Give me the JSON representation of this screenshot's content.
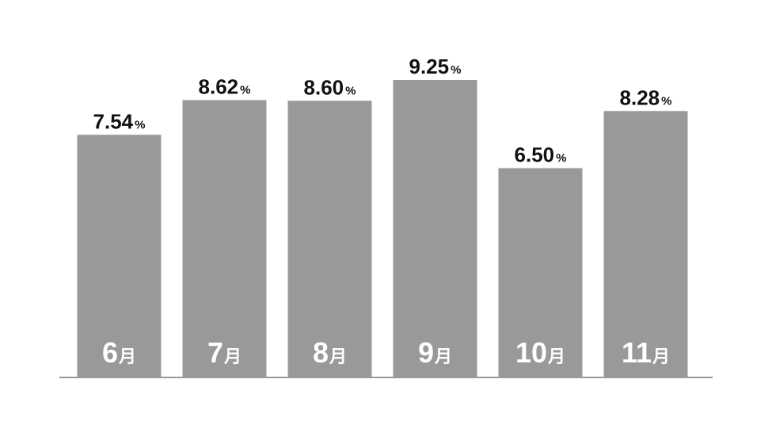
{
  "chart_data": {
    "type": "bar",
    "categories": [
      "6月",
      "7月",
      "8月",
      "9月",
      "10月",
      "11月"
    ],
    "category_numbers": [
      "6",
      "7",
      "8",
      "9",
      "10",
      "11"
    ],
    "category_unit": "月",
    "values": [
      7.54,
      8.62,
      8.6,
      9.25,
      6.5,
      8.28
    ],
    "value_labels": [
      "7.54",
      "8.62",
      "8.60",
      "9.25",
      "6.50",
      "8.28"
    ],
    "value_unit": "%",
    "title": "",
    "xlabel": "",
    "ylabel": "",
    "ylim": [
      0,
      9.25
    ],
    "grid": false,
    "legend": "none",
    "bar_color": "#999999",
    "label_color": "#111111",
    "category_label_color": "#ffffff"
  }
}
